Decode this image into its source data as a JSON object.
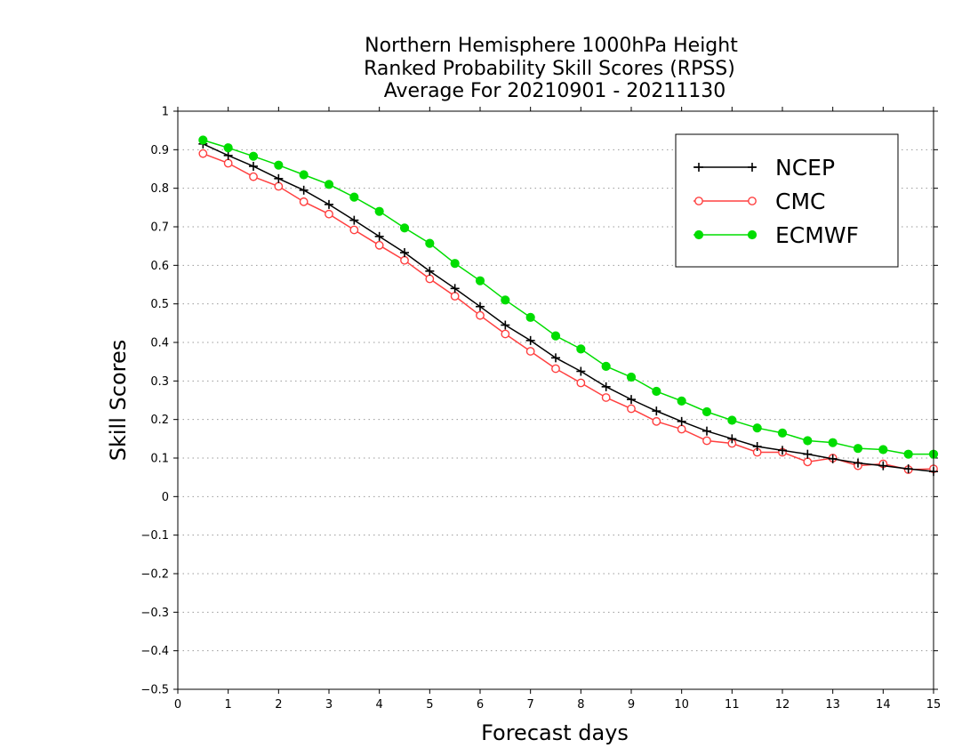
{
  "chart_data": {
    "type": "line",
    "title": [
      "Northern Hemisphere 1000hPa Height",
      "Ranked Probability Skill Scores (RPSS)",
      "Average For 20210901 - 20211130"
    ],
    "xlabel": "Forecast days",
    "ylabel": "Skill Scores",
    "xlim": [
      0,
      15
    ],
    "ylim": [
      -0.5,
      1
    ],
    "xticks": [
      0,
      1,
      2,
      3,
      4,
      5,
      6,
      7,
      8,
      9,
      10,
      11,
      12,
      13,
      14,
      15
    ],
    "xtick_labels": [
      "0",
      "1",
      "2",
      "3",
      "4",
      "5",
      "6",
      "7",
      "8",
      "9",
      "10",
      "11",
      "12",
      "13",
      "14",
      "15"
    ],
    "yticks": [
      -0.5,
      -0.4,
      -0.3,
      -0.2,
      -0.1,
      0,
      0.1,
      0.2,
      0.3,
      0.4,
      0.5,
      0.6,
      0.7,
      0.8,
      0.9,
      1
    ],
    "ytick_labels": [
      "−0.5",
      "−0.4",
      "−0.3",
      "−0.2",
      "−0.1",
      "0",
      "0.1",
      "0.2",
      "0.3",
      "0.4",
      "0.5",
      "0.6",
      "0.7",
      "0.8",
      "0.9",
      "1"
    ],
    "grid": "horizontal dotted",
    "legend_position": "top-right",
    "x": [
      0.5,
      1,
      1.5,
      2,
      2.5,
      3,
      3.5,
      4,
      4.5,
      5,
      5.5,
      6,
      6.5,
      7,
      7.5,
      8,
      8.5,
      9,
      9.5,
      10,
      10.5,
      11,
      11.5,
      12,
      12.5,
      13,
      13.5,
      14,
      14.5,
      15
    ],
    "series": [
      {
        "name": "NCEP",
        "color": "#000000",
        "marker": "plus",
        "values": [
          0.915,
          0.885,
          0.857,
          0.825,
          0.795,
          0.758,
          0.717,
          0.675,
          0.633,
          0.585,
          0.54,
          0.493,
          0.445,
          0.405,
          0.36,
          0.325,
          0.285,
          0.252,
          0.222,
          0.195,
          0.17,
          0.15,
          0.13,
          0.12,
          0.11,
          0.098,
          0.087,
          0.08,
          0.072,
          0.065
        ]
      },
      {
        "name": "CMC",
        "color": "#ff4040",
        "marker": "open-circle",
        "values": [
          0.89,
          0.865,
          0.83,
          0.805,
          0.765,
          0.733,
          0.692,
          0.652,
          0.613,
          0.565,
          0.52,
          0.47,
          0.422,
          0.377,
          0.332,
          0.295,
          0.257,
          0.228,
          0.195,
          0.175,
          0.145,
          0.138,
          0.115,
          0.115,
          0.09,
          0.1,
          0.08,
          0.085,
          0.07,
          0.072
        ]
      },
      {
        "name": "ECMWF",
        "color": "#00dd00",
        "marker": "filled-circle",
        "values": [
          0.925,
          0.905,
          0.883,
          0.86,
          0.835,
          0.81,
          0.777,
          0.74,
          0.697,
          0.657,
          0.605,
          0.56,
          0.51,
          0.465,
          0.417,
          0.383,
          0.338,
          0.31,
          0.273,
          0.248,
          0.22,
          0.198,
          0.178,
          0.165,
          0.145,
          0.14,
          0.125,
          0.122,
          0.11,
          0.11
        ]
      }
    ]
  }
}
